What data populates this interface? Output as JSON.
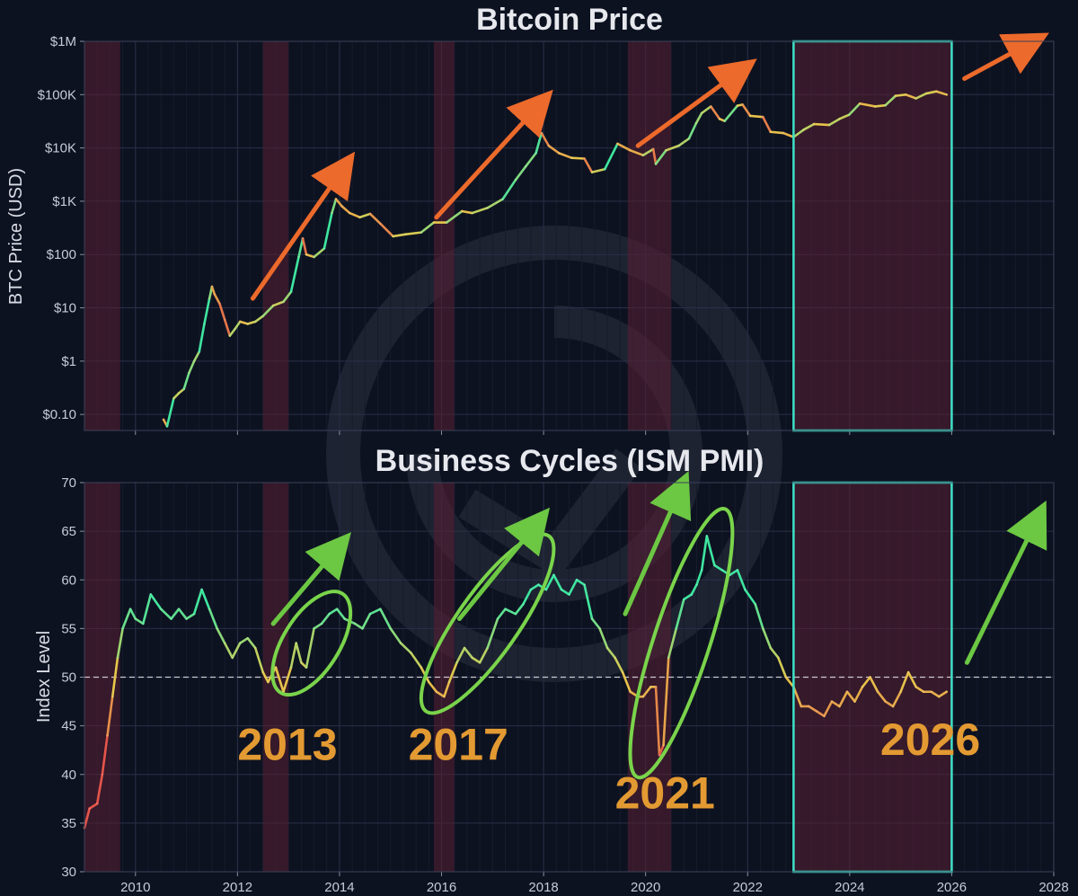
{
  "chart_data": [
    {
      "type": "line",
      "title": "Bitcoin Price",
      "xlabel": "",
      "ylabel": "BTC Price (USD)",
      "y_scale": "log",
      "xlim": [
        2009.0,
        2028.0
      ],
      "ylim": [
        0.05,
        1000000
      ],
      "yticks": [
        {
          "value": 0.1,
          "label": "$0.10"
        },
        {
          "value": 1,
          "label": "$1"
        },
        {
          "value": 10,
          "label": "$10"
        },
        {
          "value": 100,
          "label": "$100"
        },
        {
          "value": 1000,
          "label": "$1K"
        },
        {
          "value": 10000,
          "label": "$10K"
        },
        {
          "value": 100000,
          "label": "$100K"
        },
        {
          "value": 1000000,
          "label": "$1M"
        }
      ],
      "series": [
        {
          "points": [
            [
              2010.55,
              0.08
            ],
            [
              2010.62,
              0.06
            ],
            [
              2010.75,
              0.2
            ],
            [
              2010.85,
              0.25
            ],
            [
              2010.95,
              0.3
            ],
            [
              2011.05,
              0.6
            ],
            [
              2011.15,
              1.0
            ],
            [
              2011.25,
              1.5
            ],
            [
              2011.35,
              5.0
            ],
            [
              2011.45,
              15.0
            ],
            [
              2011.5,
              25.0
            ],
            [
              2011.55,
              18.0
            ],
            [
              2011.65,
              12.0
            ],
            [
              2011.75,
              6.0
            ],
            [
              2011.85,
              3.0
            ],
            [
              2011.95,
              4.0
            ],
            [
              2012.05,
              5.5
            ],
            [
              2012.2,
              5.0
            ],
            [
              2012.35,
              5.5
            ],
            [
              2012.5,
              7.0
            ],
            [
              2012.7,
              11.0
            ],
            [
              2012.9,
              13.0
            ],
            [
              2013.05,
              20.0
            ],
            [
              2013.2,
              90.0
            ],
            [
              2013.28,
              200.0
            ],
            [
              2013.35,
              100.0
            ],
            [
              2013.5,
              90.0
            ],
            [
              2013.7,
              130.0
            ],
            [
              2013.85,
              600.0
            ],
            [
              2013.93,
              1100.0
            ],
            [
              2014.05,
              800.0
            ],
            [
              2014.2,
              600.0
            ],
            [
              2014.4,
              500.0
            ],
            [
              2014.6,
              580.0
            ],
            [
              2014.8,
              380.0
            ],
            [
              2015.05,
              220.0
            ],
            [
              2015.3,
              240.0
            ],
            [
              2015.6,
              260.0
            ],
            [
              2015.85,
              400.0
            ],
            [
              2016.1,
              400.0
            ],
            [
              2016.4,
              650.0
            ],
            [
              2016.6,
              600.0
            ],
            [
              2016.9,
              750.0
            ],
            [
              2017.2,
              1100.0
            ],
            [
              2017.45,
              2500.0
            ],
            [
              2017.65,
              4500.0
            ],
            [
              2017.85,
              8000.0
            ],
            [
              2017.96,
              19000.0
            ],
            [
              2018.1,
              11000.0
            ],
            [
              2018.3,
              8000.0
            ],
            [
              2018.55,
              6500.0
            ],
            [
              2018.8,
              6300.0
            ],
            [
              2018.95,
              3500.0
            ],
            [
              2019.2,
              4000.0
            ],
            [
              2019.45,
              12000.0
            ],
            [
              2019.7,
              9000.0
            ],
            [
              2019.95,
              7300.0
            ],
            [
              2020.15,
              9500.0
            ],
            [
              2020.2,
              5000.0
            ],
            [
              2020.4,
              9000.0
            ],
            [
              2020.65,
              11000.0
            ],
            [
              2020.85,
              15000.0
            ],
            [
              2020.99,
              29000.0
            ],
            [
              2021.1,
              45000.0
            ],
            [
              2021.28,
              60000.0
            ],
            [
              2021.45,
              35000.0
            ],
            [
              2021.55,
              32000.0
            ],
            [
              2021.8,
              62000.0
            ],
            [
              2021.9,
              65000.0
            ],
            [
              2022.05,
              40000.0
            ],
            [
              2022.3,
              38000.0
            ],
            [
              2022.45,
              20000.0
            ],
            [
              2022.7,
              19000.0
            ],
            [
              2022.9,
              16000.0
            ],
            [
              2023.1,
              22000.0
            ],
            [
              2023.3,
              28000.0
            ],
            [
              2023.6,
              27000.0
            ],
            [
              2023.8,
              35000.0
            ],
            [
              2023.99,
              42000.0
            ],
            [
              2024.2,
              68000.0
            ],
            [
              2024.5,
              60000.0
            ],
            [
              2024.7,
              63000.0
            ],
            [
              2024.9,
              95000.0
            ],
            [
              2025.1,
              100000.0
            ],
            [
              2025.3,
              85000.0
            ],
            [
              2025.5,
              105000.0
            ],
            [
              2025.7,
              115000.0
            ],
            [
              2025.9,
              100000.0
            ]
          ]
        }
      ],
      "shaded_periods": [
        [
          2009.0,
          2009.7
        ],
        [
          2012.5,
          2013.0
        ],
        [
          2015.85,
          2016.25
        ],
        [
          2019.65,
          2020.5
        ],
        [
          2022.9,
          2026.0
        ]
      ],
      "highlight_box": [
        2022.9,
        2026.0
      ],
      "trend_arrows": [
        {
          "from": [
            2012.3,
            15
          ],
          "to": [
            2014.1,
            4500
          ]
        },
        {
          "from": [
            2015.9,
            500
          ],
          "to": [
            2017.95,
            70000
          ]
        },
        {
          "from": [
            2019.85,
            11000
          ],
          "to": [
            2021.9,
            300000
          ]
        },
        {
          "from": [
            2026.25,
            200000
          ],
          "to": [
            2027.6,
            1000000
          ]
        }
      ],
      "grid": true
    },
    {
      "type": "line",
      "title": "Business Cycles (ISM PMI)",
      "xlabel": "",
      "ylabel": "Index Level",
      "xlim": [
        2009.0,
        2028.0
      ],
      "ylim": [
        30,
        70
      ],
      "xticks": [
        2010,
        2012,
        2014,
        2016,
        2018,
        2020,
        2022,
        2024,
        2026,
        2028
      ],
      "yticks": [
        30,
        35,
        40,
        45,
        50,
        55,
        60,
        65,
        70
      ],
      "reference_line": 50,
      "series": [
        {
          "points": [
            [
              2009.0,
              34.5
            ],
            [
              2009.1,
              36.5
            ],
            [
              2009.25,
              37.0
            ],
            [
              2009.35,
              40.0
            ],
            [
              2009.45,
              44.0
            ],
            [
              2009.55,
              48.0
            ],
            [
              2009.65,
              52.0
            ],
            [
              2009.75,
              55.0
            ],
            [
              2009.9,
              57.0
            ],
            [
              2010.0,
              56.0
            ],
            [
              2010.15,
              55.5
            ],
            [
              2010.3,
              58.5
            ],
            [
              2010.5,
              57.0
            ],
            [
              2010.7,
              56.0
            ],
            [
              2010.85,
              57.0
            ],
            [
              2011.0,
              56.0
            ],
            [
              2011.15,
              56.5
            ],
            [
              2011.3,
              59.0
            ],
            [
              2011.45,
              57.0
            ],
            [
              2011.6,
              55.0
            ],
            [
              2011.75,
              53.5
            ],
            [
              2011.9,
              52.0
            ],
            [
              2012.05,
              53.5
            ],
            [
              2012.2,
              54.0
            ],
            [
              2012.35,
              53.0
            ],
            [
              2012.5,
              50.5
            ],
            [
              2012.6,
              49.5
            ],
            [
              2012.75,
              51.0
            ],
            [
              2012.9,
              48.5
            ],
            [
              2013.05,
              51.0
            ],
            [
              2013.15,
              53.5
            ],
            [
              2013.25,
              51.5
            ],
            [
              2013.35,
              51.0
            ],
            [
              2013.5,
              55.0
            ],
            [
              2013.65,
              55.5
            ],
            [
              2013.8,
              56.5
            ],
            [
              2013.95,
              57.0
            ],
            [
              2014.1,
              56.0
            ],
            [
              2014.3,
              55.5
            ],
            [
              2014.45,
              55.0
            ],
            [
              2014.6,
              56.5
            ],
            [
              2014.8,
              57.0
            ],
            [
              2015.0,
              55.0
            ],
            [
              2015.2,
              53.5
            ],
            [
              2015.4,
              52.5
            ],
            [
              2015.6,
              51.0
            ],
            [
              2015.75,
              49.5
            ],
            [
              2015.9,
              48.5
            ],
            [
              2016.05,
              48.0
            ],
            [
              2016.15,
              49.5
            ],
            [
              2016.3,
              51.5
            ],
            [
              2016.45,
              53.0
            ],
            [
              2016.6,
              52.0
            ],
            [
              2016.75,
              51.5
            ],
            [
              2016.9,
              53.0
            ],
            [
              2017.1,
              56.0
            ],
            [
              2017.25,
              57.0
            ],
            [
              2017.45,
              56.5
            ],
            [
              2017.6,
              57.5
            ],
            [
              2017.75,
              59.0
            ],
            [
              2017.9,
              59.5
            ],
            [
              2018.05,
              59.0
            ],
            [
              2018.2,
              60.5
            ],
            [
              2018.35,
              59.0
            ],
            [
              2018.5,
              58.5
            ],
            [
              2018.65,
              60.0
            ],
            [
              2018.8,
              59.5
            ],
            [
              2018.95,
              56.0
            ],
            [
              2019.1,
              55.0
            ],
            [
              2019.25,
              53.0
            ],
            [
              2019.4,
              52.0
            ],
            [
              2019.55,
              50.5
            ],
            [
              2019.7,
              48.5
            ],
            [
              2019.85,
              48.0
            ],
            [
              2019.95,
              48.0
            ],
            [
              2020.1,
              49.0
            ],
            [
              2020.2,
              49.0
            ],
            [
              2020.27,
              42.0
            ],
            [
              2020.35,
              43.0
            ],
            [
              2020.45,
              52.0
            ],
            [
              2020.6,
              55.0
            ],
            [
              2020.75,
              58.0
            ],
            [
              2020.9,
              58.5
            ],
            [
              2021.0,
              59.5
            ],
            [
              2021.1,
              61.0
            ],
            [
              2021.2,
              64.5
            ],
            [
              2021.35,
              61.5
            ],
            [
              2021.5,
              61.0
            ],
            [
              2021.65,
              60.5
            ],
            [
              2021.8,
              61.0
            ],
            [
              2021.95,
              59.0
            ],
            [
              2022.15,
              57.5
            ],
            [
              2022.3,
              55.0
            ],
            [
              2022.45,
              53.0
            ],
            [
              2022.6,
              52.0
            ],
            [
              2022.75,
              50.0
            ],
            [
              2022.9,
              49.0
            ],
            [
              2023.05,
              47.0
            ],
            [
              2023.2,
              47.0
            ],
            [
              2023.35,
              46.5
            ],
            [
              2023.5,
              46.0
            ],
            [
              2023.65,
              47.5
            ],
            [
              2023.8,
              47.0
            ],
            [
              2023.95,
              48.5
            ],
            [
              2024.1,
              47.5
            ],
            [
              2024.25,
              49.0
            ],
            [
              2024.4,
              50.0
            ],
            [
              2024.55,
              48.5
            ],
            [
              2024.7,
              47.5
            ],
            [
              2024.85,
              47.0
            ],
            [
              2025.0,
              48.5
            ],
            [
              2025.15,
              50.5
            ],
            [
              2025.3,
              49.0
            ],
            [
              2025.45,
              48.5
            ],
            [
              2025.6,
              48.5
            ],
            [
              2025.75,
              48.0
            ],
            [
              2025.9,
              48.5
            ]
          ]
        }
      ],
      "shaded_periods": [
        [
          2009.0,
          2009.7
        ],
        [
          2012.5,
          2013.0
        ],
        [
          2015.85,
          2016.25
        ],
        [
          2019.65,
          2020.5
        ],
        [
          2022.9,
          2026.0
        ]
      ],
      "highlight_box": [
        2022.9,
        2026.0
      ],
      "trend_arrows": [
        {
          "from": [
            2012.7,
            55.5
          ],
          "to": [
            2014.0,
            63.5
          ]
        },
        {
          "from": [
            2016.35,
            56.0
          ],
          "to": [
            2017.9,
            66.0
          ]
        },
        {
          "from": [
            2019.6,
            56.5
          ],
          "to": [
            2020.7,
            69.5
          ]
        },
        {
          "from": [
            2026.3,
            51.5
          ],
          "to": [
            2027.7,
            66.5
          ]
        }
      ],
      "ellipses": [
        {
          "center": [
            2013.45,
            53.5
          ],
          "rx_years": 0.55,
          "ry_units": 6.0,
          "rotate": 32
        },
        {
          "center": [
            2016.9,
            55.5
          ],
          "rx_years": 0.6,
          "ry_units": 11.0,
          "rotate": 35
        },
        {
          "center": [
            2020.7,
            53.5
          ],
          "rx_years": 0.55,
          "ry_units": 14.5,
          "rotate": 18
        }
      ],
      "annotations": [
        {
          "text": "2013",
          "x": 2012.0,
          "y": 41.5,
          "color": "#e39a32"
        },
        {
          "text": "2017",
          "x": 2015.35,
          "y": 41.5,
          "color": "#e39a32"
        },
        {
          "text": "2021",
          "x": 2019.4,
          "y": 36.5,
          "color": "#e39a32"
        },
        {
          "text": "2026",
          "x": 2024.6,
          "y": 42.0,
          "color": "#e39a32"
        }
      ],
      "grid": true
    }
  ],
  "colors": {
    "background": "#0d1221",
    "shade": "#5a1f33",
    "highlight_box": "#3fe0c6",
    "orange_arrow": "#ec6a2b",
    "green_arrow": "#6cc743",
    "ellipse": "#7ad44b",
    "reference_line": "#e8e8e8",
    "line_high": "#3ee6a0",
    "line_mid": "#e7c84a",
    "line_low": "#e5554a"
  }
}
